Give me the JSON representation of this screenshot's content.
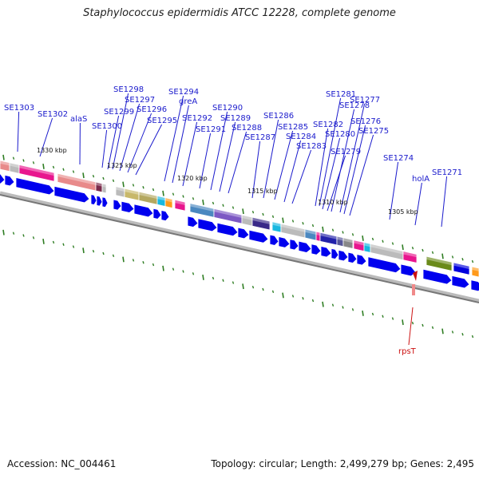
{
  "title": "Staphylococcus epidermidis ATCC 12228, complete genome",
  "accession": "Accession: NC_004461",
  "summary": "Topology: circular; Length: 2,499,279 bp; Genes: 2,495",
  "colors": {
    "gene_label": "#1a1acc",
    "highlight_label": "#cc1111",
    "forward_strand": "#0000ee",
    "ticks": "#2e7d22",
    "backbone": "#777777"
  },
  "scale_labels": [
    "1330 kbp",
    "1325 kbp",
    "1320 kbp",
    "1315 kbp",
    "1310 kbp",
    "1305 kbp"
  ],
  "gene_labels": [
    "SE1303",
    "SE1302",
    "alaS",
    "SE1300",
    "SE1299",
    "SE1298",
    "SE1297",
    "SE1296",
    "SE1295",
    "SE1294",
    "greA",
    "SE1292",
    "SE1291",
    "SE1290",
    "SE1289",
    "SE1288",
    "SE1287",
    "SE1286",
    "SE1285",
    "SE1284",
    "SE1283",
    "SE1282",
    "SE1281",
    "SE1280",
    "SE1279",
    "SE1278",
    "SE1277",
    "SE1276",
    "SE1275",
    "SE1274",
    "holA",
    "SE1271"
  ],
  "highlight_label": "rpsT"
}
